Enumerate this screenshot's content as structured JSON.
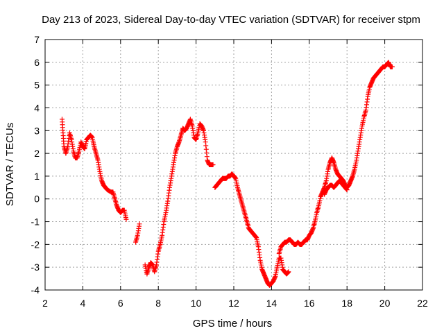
{
  "chart_data": {
    "type": "scatter",
    "title": "Day 213 of 2023, Sidereal Day-to-day VTEC variation (SDTVAR) for receiver stpm",
    "xlabel": "GPS time / hours",
    "ylabel": "SDTVAR / TECUs",
    "xlim": [
      2,
      22
    ],
    "ylim": [
      -4,
      7
    ],
    "xticks": [
      "2",
      "4",
      "6",
      "8",
      "10",
      "12",
      "14",
      "16",
      "18",
      "20",
      "22"
    ],
    "yticks": [
      "-4",
      "-3",
      "-2",
      "-1",
      "0",
      "1",
      "2",
      "3",
      "4",
      "5",
      "6",
      "7"
    ],
    "grid": true,
    "marker": "+",
    "color": "#ff0000",
    "series": [
      {
        "name": "SDTVAR",
        "segments": [
          [
            [
              2.9,
              3.5
            ],
            [
              2.95,
              2.9
            ],
            [
              3.0,
              2.3
            ],
            [
              3.1,
              2.0
            ],
            [
              3.2,
              2.3
            ],
            [
              3.3,
              2.9
            ],
            [
              3.4,
              2.6
            ],
            [
              3.5,
              2.1
            ],
            [
              3.6,
              1.8
            ],
            [
              3.7,
              1.8
            ],
            [
              3.8,
              2.1
            ],
            [
              3.9,
              2.5
            ],
            [
              4.0,
              2.3
            ],
            [
              4.1,
              2.2
            ],
            [
              4.2,
              2.6
            ],
            [
              4.3,
              2.7
            ],
            [
              4.4,
              2.8
            ],
            [
              4.5,
              2.7
            ],
            [
              4.6,
              2.3
            ],
            [
              4.7,
              2.0
            ],
            [
              4.8,
              1.7
            ],
            [
              4.9,
              1.2
            ],
            [
              5.0,
              0.8
            ],
            [
              5.1,
              0.6
            ],
            [
              5.2,
              0.5
            ],
            [
              5.3,
              0.4
            ],
            [
              5.5,
              0.3
            ],
            [
              5.6,
              0.3
            ],
            [
              5.7,
              0.0
            ],
            [
              5.8,
              -0.3
            ],
            [
              5.9,
              -0.5
            ],
            [
              6.0,
              -0.6
            ],
            [
              6.1,
              -0.5
            ],
            [
              6.2,
              -0.5
            ],
            [
              6.3,
              -0.9
            ]
          ],
          [
            [
              6.8,
              -1.9
            ],
            [
              6.9,
              -1.6
            ],
            [
              7.0,
              -1.1
            ]
          ],
          [
            [
              7.3,
              -2.9
            ],
            [
              7.4,
              -3.3
            ],
            [
              7.5,
              -3.0
            ],
            [
              7.6,
              -2.8
            ],
            [
              7.7,
              -2.9
            ],
            [
              7.8,
              -3.2
            ],
            [
              7.9,
              -2.9
            ],
            [
              8.0,
              -2.3
            ],
            [
              8.1,
              -2.0
            ],
            [
              8.2,
              -1.6
            ],
            [
              8.3,
              -1.0
            ],
            [
              8.4,
              -0.6
            ],
            [
              8.5,
              -0.1
            ],
            [
              8.6,
              0.5
            ],
            [
              8.7,
              1.0
            ],
            [
              8.8,
              1.5
            ],
            [
              8.9,
              2.0
            ],
            [
              9.0,
              2.3
            ],
            [
              9.1,
              2.5
            ],
            [
              9.2,
              2.8
            ],
            [
              9.3,
              3.1
            ],
            [
              9.4,
              3.0
            ],
            [
              9.5,
              3.1
            ],
            [
              9.6,
              3.3
            ],
            [
              9.7,
              3.5
            ],
            [
              9.8,
              3.2
            ],
            [
              9.9,
              2.7
            ],
            [
              10.0,
              2.6
            ],
            [
              10.1,
              2.9
            ],
            [
              10.2,
              3.3
            ],
            [
              10.3,
              3.2
            ],
            [
              10.4,
              3.0
            ],
            [
              10.5,
              2.5
            ],
            [
              10.6,
              1.7
            ],
            [
              10.7,
              1.5
            ],
            [
              10.8,
              1.5
            ],
            [
              10.9,
              1.5
            ]
          ],
          [
            [
              11.0,
              0.5
            ],
            [
              11.1,
              0.6
            ],
            [
              11.2,
              0.7
            ],
            [
              11.3,
              0.8
            ],
            [
              11.4,
              0.9
            ],
            [
              11.5,
              0.9
            ],
            [
              11.6,
              0.9
            ],
            [
              11.7,
              1.0
            ],
            [
              11.8,
              1.0
            ],
            [
              11.9,
              1.1
            ],
            [
              12.0,
              1.0
            ],
            [
              12.1,
              0.9
            ],
            [
              12.2,
              0.5
            ],
            [
              12.3,
              0.2
            ],
            [
              12.4,
              -0.1
            ],
            [
              12.5,
              -0.4
            ],
            [
              12.6,
              -0.7
            ],
            [
              12.7,
              -1.0
            ],
            [
              12.8,
              -1.3
            ],
            [
              12.9,
              -1.4
            ],
            [
              13.0,
              -1.5
            ],
            [
              13.1,
              -1.6
            ],
            [
              13.2,
              -1.7
            ],
            [
              13.3,
              -2.1
            ],
            [
              13.4,
              -2.7
            ],
            [
              13.5,
              -3.1
            ],
            [
              13.6,
              -3.3
            ],
            [
              13.7,
              -3.5
            ],
            [
              13.8,
              -3.7
            ],
            [
              13.9,
              -3.8
            ],
            [
              14.0,
              -3.7
            ],
            [
              14.1,
              -3.6
            ],
            [
              14.2,
              -3.4
            ],
            [
              14.3,
              -3.0
            ],
            [
              14.4,
              -2.6
            ],
            [
              14.5,
              -2.6
            ],
            [
              14.6,
              -3.1
            ],
            [
              14.7,
              -3.2
            ],
            [
              14.8,
              -3.3
            ],
            [
              14.9,
              -3.2
            ]
          ],
          [
            [
              14.4,
              -2.4
            ],
            [
              14.5,
              -2.1
            ],
            [
              14.6,
              -2.0
            ],
            [
              14.7,
              -1.9
            ],
            [
              14.8,
              -1.9
            ],
            [
              14.9,
              -1.8
            ],
            [
              15.0,
              -1.8
            ],
            [
              15.1,
              -1.9
            ],
            [
              15.2,
              -2.0
            ],
            [
              15.3,
              -2.0
            ],
            [
              15.4,
              -1.9
            ],
            [
              15.5,
              -2.0
            ],
            [
              15.6,
              -2.0
            ],
            [
              15.7,
              -1.9
            ],
            [
              15.8,
              -1.8
            ],
            [
              15.9,
              -1.8
            ],
            [
              16.0,
              -1.6
            ],
            [
              16.1,
              -1.5
            ],
            [
              16.2,
              -1.3
            ],
            [
              16.3,
              -1.0
            ],
            [
              16.4,
              -0.6
            ],
            [
              16.5,
              -0.3
            ],
            [
              16.6,
              0.1
            ],
            [
              16.7,
              0.3
            ],
            [
              16.8,
              0.5
            ],
            [
              16.9,
              0.8
            ],
            [
              17.0,
              1.3
            ],
            [
              17.1,
              1.6
            ],
            [
              17.2,
              1.8
            ],
            [
              17.3,
              1.6
            ],
            [
              17.4,
              1.3
            ],
            [
              17.5,
              1.1
            ],
            [
              17.6,
              1.0
            ],
            [
              17.7,
              0.9
            ],
            [
              17.8,
              0.8
            ],
            [
              17.9,
              0.6
            ],
            [
              18.0,
              0.5
            ],
            [
              18.1,
              0.6
            ],
            [
              18.2,
              0.8
            ],
            [
              18.3,
              1.0
            ],
            [
              18.4,
              1.3
            ],
            [
              18.5,
              1.7
            ],
            [
              18.6,
              2.2
            ],
            [
              18.7,
              2.7
            ],
            [
              18.8,
              3.2
            ],
            [
              18.9,
              3.6
            ],
            [
              19.0,
              3.9
            ],
            [
              19.1,
              4.5
            ],
            [
              19.2,
              4.9
            ],
            [
              19.3,
              5.1
            ],
            [
              19.4,
              5.3
            ],
            [
              19.5,
              5.4
            ],
            [
              19.6,
              5.5
            ],
            [
              19.7,
              5.6
            ],
            [
              19.8,
              5.7
            ],
            [
              19.9,
              5.8
            ],
            [
              20.0,
              5.8
            ],
            [
              20.1,
              5.9
            ],
            [
              20.2,
              6.0
            ],
            [
              20.3,
              5.8
            ],
            [
              20.4,
              5.8
            ]
          ],
          [
            [
              16.8,
              0.2
            ],
            [
              16.9,
              0.4
            ],
            [
              17.0,
              0.5
            ],
            [
              17.1,
              0.6
            ],
            [
              17.2,
              0.6
            ],
            [
              17.3,
              0.5
            ],
            [
              17.4,
              0.6
            ],
            [
              17.5,
              0.7
            ],
            [
              17.6,
              0.8
            ],
            [
              17.7,
              0.7
            ],
            [
              17.8,
              0.6
            ],
            [
              17.9,
              0.5
            ],
            [
              18.0,
              0.4
            ]
          ]
        ]
      }
    ]
  }
}
